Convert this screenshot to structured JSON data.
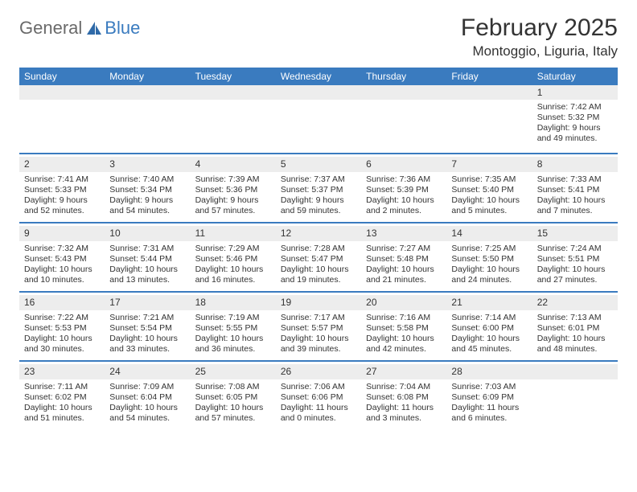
{
  "brand": {
    "general": "General",
    "blue": "Blue"
  },
  "title": "February 2025",
  "location": "Montoggio, Liguria, Italy",
  "colors": {
    "accent": "#3a7bbf",
    "header_bg": "#3a7bbf",
    "daynum_bg": "#ededed",
    "text": "#333333",
    "background": "#ffffff"
  },
  "day_headers": [
    "Sunday",
    "Monday",
    "Tuesday",
    "Wednesday",
    "Thursday",
    "Friday",
    "Saturday"
  ],
  "weeks": [
    [
      null,
      null,
      null,
      null,
      null,
      null,
      {
        "n": "1",
        "sunrise": "Sunrise: 7:42 AM",
        "sunset": "Sunset: 5:32 PM",
        "daylight": "Daylight: 9 hours and 49 minutes."
      }
    ],
    [
      {
        "n": "2",
        "sunrise": "Sunrise: 7:41 AM",
        "sunset": "Sunset: 5:33 PM",
        "daylight": "Daylight: 9 hours and 52 minutes."
      },
      {
        "n": "3",
        "sunrise": "Sunrise: 7:40 AM",
        "sunset": "Sunset: 5:34 PM",
        "daylight": "Daylight: 9 hours and 54 minutes."
      },
      {
        "n": "4",
        "sunrise": "Sunrise: 7:39 AM",
        "sunset": "Sunset: 5:36 PM",
        "daylight": "Daylight: 9 hours and 57 minutes."
      },
      {
        "n": "5",
        "sunrise": "Sunrise: 7:37 AM",
        "sunset": "Sunset: 5:37 PM",
        "daylight": "Daylight: 9 hours and 59 minutes."
      },
      {
        "n": "6",
        "sunrise": "Sunrise: 7:36 AM",
        "sunset": "Sunset: 5:39 PM",
        "daylight": "Daylight: 10 hours and 2 minutes."
      },
      {
        "n": "7",
        "sunrise": "Sunrise: 7:35 AM",
        "sunset": "Sunset: 5:40 PM",
        "daylight": "Daylight: 10 hours and 5 minutes."
      },
      {
        "n": "8",
        "sunrise": "Sunrise: 7:33 AM",
        "sunset": "Sunset: 5:41 PM",
        "daylight": "Daylight: 10 hours and 7 minutes."
      }
    ],
    [
      {
        "n": "9",
        "sunrise": "Sunrise: 7:32 AM",
        "sunset": "Sunset: 5:43 PM",
        "daylight": "Daylight: 10 hours and 10 minutes."
      },
      {
        "n": "10",
        "sunrise": "Sunrise: 7:31 AM",
        "sunset": "Sunset: 5:44 PM",
        "daylight": "Daylight: 10 hours and 13 minutes."
      },
      {
        "n": "11",
        "sunrise": "Sunrise: 7:29 AM",
        "sunset": "Sunset: 5:46 PM",
        "daylight": "Daylight: 10 hours and 16 minutes."
      },
      {
        "n": "12",
        "sunrise": "Sunrise: 7:28 AM",
        "sunset": "Sunset: 5:47 PM",
        "daylight": "Daylight: 10 hours and 19 minutes."
      },
      {
        "n": "13",
        "sunrise": "Sunrise: 7:27 AM",
        "sunset": "Sunset: 5:48 PM",
        "daylight": "Daylight: 10 hours and 21 minutes."
      },
      {
        "n": "14",
        "sunrise": "Sunrise: 7:25 AM",
        "sunset": "Sunset: 5:50 PM",
        "daylight": "Daylight: 10 hours and 24 minutes."
      },
      {
        "n": "15",
        "sunrise": "Sunrise: 7:24 AM",
        "sunset": "Sunset: 5:51 PM",
        "daylight": "Daylight: 10 hours and 27 minutes."
      }
    ],
    [
      {
        "n": "16",
        "sunrise": "Sunrise: 7:22 AM",
        "sunset": "Sunset: 5:53 PM",
        "daylight": "Daylight: 10 hours and 30 minutes."
      },
      {
        "n": "17",
        "sunrise": "Sunrise: 7:21 AM",
        "sunset": "Sunset: 5:54 PM",
        "daylight": "Daylight: 10 hours and 33 minutes."
      },
      {
        "n": "18",
        "sunrise": "Sunrise: 7:19 AM",
        "sunset": "Sunset: 5:55 PM",
        "daylight": "Daylight: 10 hours and 36 minutes."
      },
      {
        "n": "19",
        "sunrise": "Sunrise: 7:17 AM",
        "sunset": "Sunset: 5:57 PM",
        "daylight": "Daylight: 10 hours and 39 minutes."
      },
      {
        "n": "20",
        "sunrise": "Sunrise: 7:16 AM",
        "sunset": "Sunset: 5:58 PM",
        "daylight": "Daylight: 10 hours and 42 minutes."
      },
      {
        "n": "21",
        "sunrise": "Sunrise: 7:14 AM",
        "sunset": "Sunset: 6:00 PM",
        "daylight": "Daylight: 10 hours and 45 minutes."
      },
      {
        "n": "22",
        "sunrise": "Sunrise: 7:13 AM",
        "sunset": "Sunset: 6:01 PM",
        "daylight": "Daylight: 10 hours and 48 minutes."
      }
    ],
    [
      {
        "n": "23",
        "sunrise": "Sunrise: 7:11 AM",
        "sunset": "Sunset: 6:02 PM",
        "daylight": "Daylight: 10 hours and 51 minutes."
      },
      {
        "n": "24",
        "sunrise": "Sunrise: 7:09 AM",
        "sunset": "Sunset: 6:04 PM",
        "daylight": "Daylight: 10 hours and 54 minutes."
      },
      {
        "n": "25",
        "sunrise": "Sunrise: 7:08 AM",
        "sunset": "Sunset: 6:05 PM",
        "daylight": "Daylight: 10 hours and 57 minutes."
      },
      {
        "n": "26",
        "sunrise": "Sunrise: 7:06 AM",
        "sunset": "Sunset: 6:06 PM",
        "daylight": "Daylight: 11 hours and 0 minutes."
      },
      {
        "n": "27",
        "sunrise": "Sunrise: 7:04 AM",
        "sunset": "Sunset: 6:08 PM",
        "daylight": "Daylight: 11 hours and 3 minutes."
      },
      {
        "n": "28",
        "sunrise": "Sunrise: 7:03 AM",
        "sunset": "Sunset: 6:09 PM",
        "daylight": "Daylight: 11 hours and 6 minutes."
      },
      null
    ]
  ]
}
